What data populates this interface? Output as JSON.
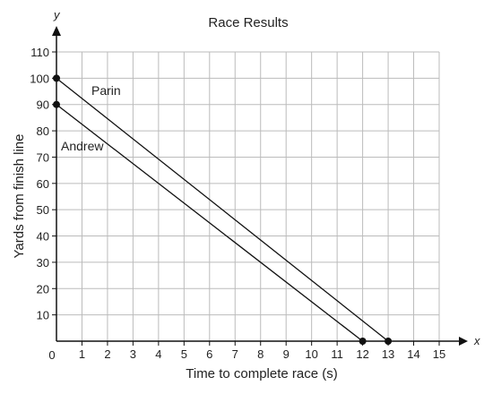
{
  "chart_data": {
    "type": "line",
    "title": "Race Results",
    "xlabel": "Time to complete race (s)",
    "ylabel": "Yards from finish line",
    "x_axis_letter": "x",
    "y_axis_letter": "y",
    "origin_label": "0",
    "xlim": [
      0,
      15
    ],
    "ylim": [
      0,
      110
    ],
    "x_ticks": [
      1,
      2,
      3,
      4,
      5,
      6,
      7,
      8,
      9,
      10,
      11,
      12,
      13,
      14,
      15
    ],
    "y_ticks": [
      10,
      20,
      30,
      40,
      50,
      60,
      70,
      80,
      90,
      100,
      110
    ],
    "grid": true,
    "series": [
      {
        "name": "Parin",
        "points": [
          [
            0,
            100
          ],
          [
            13,
            0
          ]
        ]
      },
      {
        "name": "Andrew",
        "points": [
          [
            0,
            90
          ],
          [
            12,
            0
          ]
        ]
      }
    ],
    "colors": {
      "line": "#111111",
      "grid": "#bbbbbb",
      "axis": "#111111"
    }
  }
}
